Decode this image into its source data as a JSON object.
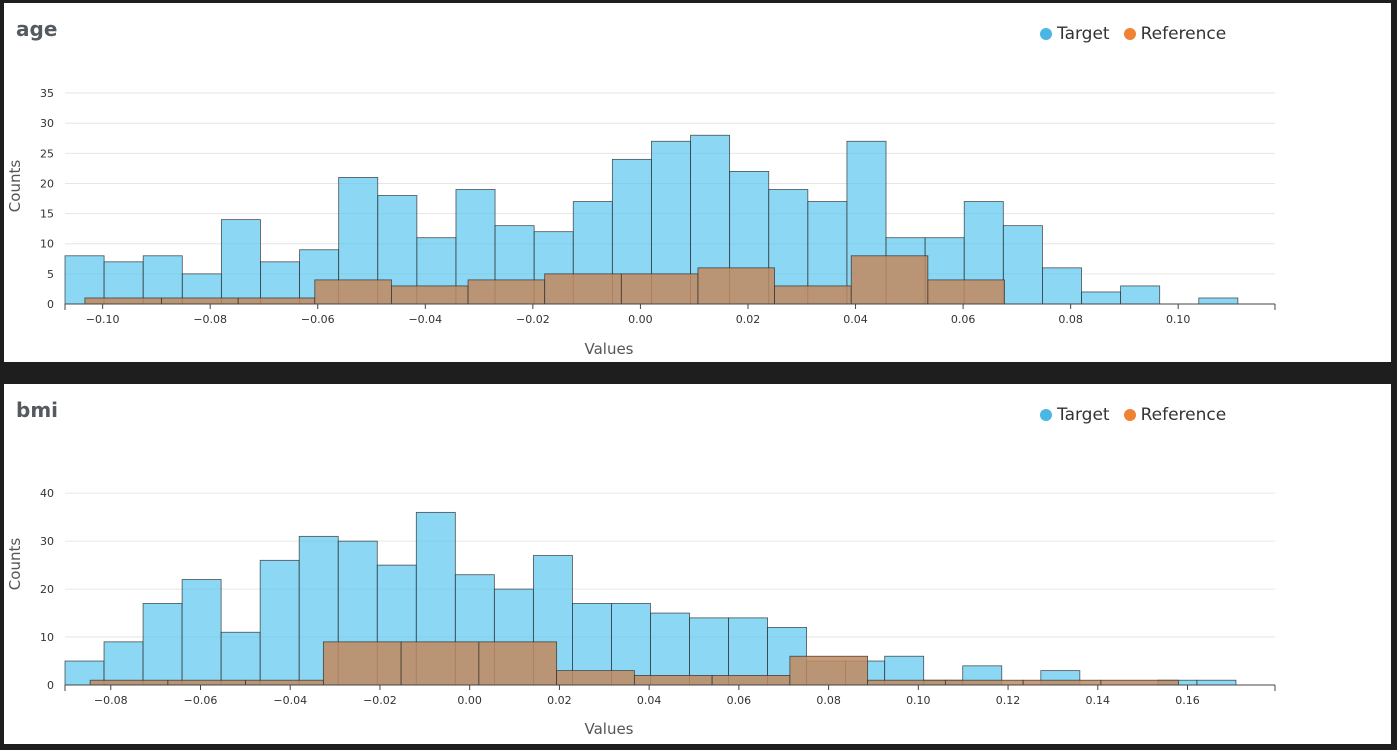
{
  "colors": {
    "target": "#56c4ee",
    "reference": "#c18a5f",
    "reference_legend": "#ef8233"
  },
  "legend": {
    "target_label": "Target",
    "reference_label": "Reference"
  },
  "chart_data": [
    {
      "type": "bar",
      "title": "age",
      "xlabel": "Values",
      "ylabel": "Counts",
      "xlim": [
        -0.107,
        0.118
      ],
      "ylim": [
        0,
        37
      ],
      "xticks": [
        "−0.10",
        "−0.08",
        "−0.06",
        "−0.04",
        "−0.02",
        "0.00",
        "0.02",
        "0.04",
        "0.06",
        "0.08",
        "0.10"
      ],
      "xtick_values": [
        -0.1,
        -0.08,
        -0.06,
        -0.04,
        -0.02,
        0.0,
        0.02,
        0.04,
        0.06,
        0.08,
        0.1
      ],
      "yticks": [
        "0",
        "5",
        "10",
        "15",
        "20",
        "25",
        "30",
        "35"
      ],
      "ytick_values": [
        0,
        5,
        10,
        15,
        20,
        25,
        30,
        35
      ],
      "grid": true,
      "legend_position": "top-right",
      "series": [
        {
          "name": "Target",
          "bin_start": -0.107,
          "bin_width": 0.00727,
          "values": [
            8,
            7,
            8,
            5,
            14,
            7,
            9,
            21,
            18,
            11,
            19,
            13,
            12,
            17,
            24,
            27,
            28,
            22,
            19,
            17,
            27,
            11,
            11,
            17,
            13,
            6,
            2,
            3,
            0,
            1
          ]
        },
        {
          "name": "Reference",
          "bin_start": -0.1033,
          "bin_width": 0.01425,
          "values": [
            1,
            1,
            1,
            4,
            3,
            4,
            5,
            5,
            6,
            3,
            8,
            4
          ]
        }
      ]
    },
    {
      "type": "bar",
      "title": "bmi",
      "xlabel": "Values",
      "ylabel": "Counts",
      "xlim": [
        -0.0902,
        0.1795
      ],
      "ylim": [
        0,
        44
      ],
      "xticks": [
        "−0.08",
        "−0.06",
        "−0.04",
        "−0.02",
        "0.00",
        "0.02",
        "0.04",
        "0.06",
        "0.08",
        "0.10",
        "0.12",
        "0.14",
        "0.16"
      ],
      "xtick_values": [
        -0.08,
        -0.06,
        -0.04,
        -0.02,
        0.0,
        0.02,
        0.04,
        0.06,
        0.08,
        0.1,
        0.12,
        0.14,
        0.16
      ],
      "yticks": [
        "0",
        "10",
        "20",
        "30",
        "40"
      ],
      "ytick_values": [
        0,
        10,
        20,
        30,
        40
      ],
      "grid": true,
      "legend_position": "top-right",
      "series": [
        {
          "name": "Target",
          "bin_start": -0.0902,
          "bin_width": 0.0087,
          "values": [
            5,
            9,
            17,
            22,
            11,
            26,
            31,
            30,
            25,
            36,
            23,
            20,
            27,
            17,
            17,
            15,
            14,
            14,
            12,
            5,
            5,
            6,
            1,
            4,
            0,
            3,
            0,
            0,
            1,
            1
          ]
        },
        {
          "name": "Reference",
          "bin_start": -0.0846,
          "bin_width": 0.01733,
          "values": [
            1,
            1,
            1,
            9,
            9,
            9,
            3,
            2,
            2,
            6,
            1,
            1,
            1,
            1
          ]
        }
      ]
    }
  ]
}
